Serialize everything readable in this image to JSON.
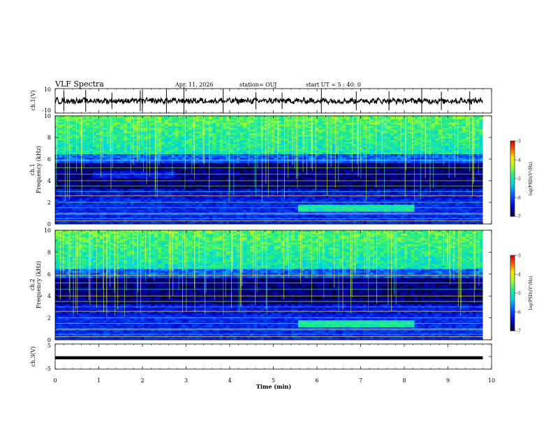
{
  "header": {
    "title": "VLF Spectra",
    "date": "Apr. 11, 2026",
    "station": "station= OUJ",
    "start": "start  UT =  5 : 40: 0"
  },
  "chart_data": [
    {
      "id": "ch1-waveform",
      "type": "line",
      "ylabel": "ch.1(V)",
      "ylim": [
        -10,
        10
      ],
      "yticks": [
        "10",
        "-10"
      ],
      "xlim": [
        0,
        10
      ],
      "baseline": 0,
      "spikes_min": [
        0.2,
        0.7,
        1.3,
        1.95,
        2.0,
        2.55,
        2.95,
        3.85,
        4.6,
        5.2,
        6.1,
        6.9,
        7.65,
        8.4,
        8.85,
        9.5
      ]
    },
    {
      "id": "ch1-spectrogram",
      "type": "heatmap",
      "label": "ch.1",
      "ylabel": "Frequency (kHz)",
      "ylim": [
        0,
        10
      ],
      "yticks": [
        "0",
        "2",
        "4",
        "6",
        "8",
        "10"
      ],
      "xlim": [
        0,
        10
      ],
      "colorbar": {
        "label": "log(PSD)(V²/Hz)",
        "range": [
          -7,
          -3
        ],
        "ticks": [
          "-3",
          "-4",
          "-5",
          "-6",
          "-7"
        ]
      }
    },
    {
      "id": "ch2-spectrogram",
      "type": "heatmap",
      "label": "ch.2",
      "ylabel": "Frequency (kHz)",
      "ylim": [
        0,
        10
      ],
      "yticks": [
        "0",
        "2",
        "4",
        "6",
        "8",
        "10"
      ],
      "xlim": [
        0,
        10
      ],
      "colorbar": {
        "label": "log(PSD)(V²/Hz)",
        "range": [
          -7,
          -3
        ],
        "ticks": [
          "-3",
          "-4",
          "-5",
          "-6",
          "-7"
        ]
      }
    },
    {
      "id": "ch3-waveform",
      "type": "line",
      "ylabel": "ch.3(V)",
      "ylim": [
        -5,
        5
      ],
      "yticks": [
        "5",
        "0",
        "-5"
      ],
      "xlim": [
        0,
        10
      ],
      "baseline": -0.5
    }
  ],
  "xaxis": {
    "label": "Time (min)",
    "ticks": [
      "0",
      "1",
      "2",
      "3",
      "4",
      "5",
      "6",
      "7",
      "8",
      "9",
      "10"
    ],
    "data_end_min": 9.8
  }
}
